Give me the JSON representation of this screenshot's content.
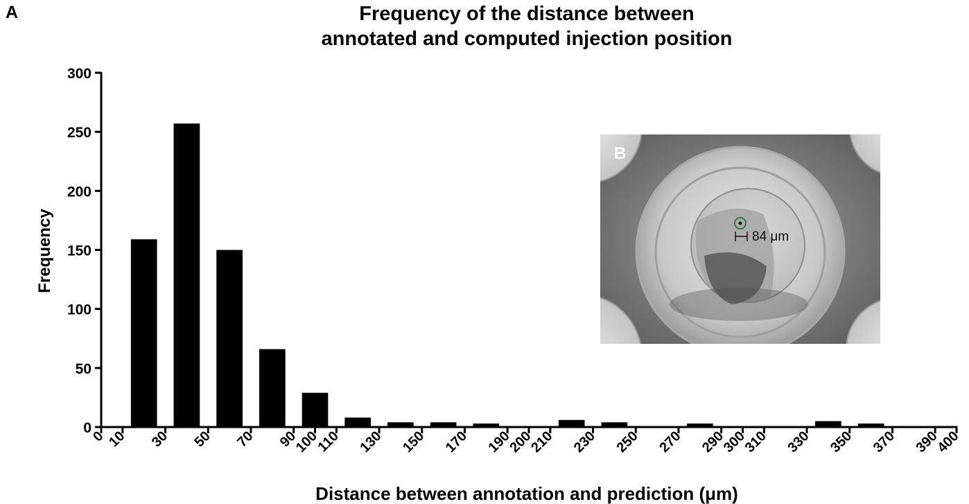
{
  "panel_label": "A",
  "chart_data": {
    "type": "bar",
    "title": "Frequency of the distance between\nannotated and computed injection position",
    "xlabel": "Distance between annotation and prediction (μm)",
    "ylabel": "Frequency",
    "ylim": [
      0,
      300
    ],
    "xlim": [
      0,
      400
    ],
    "yticks": [
      0,
      50,
      100,
      150,
      200,
      250,
      300
    ],
    "xticks": [
      0,
      10,
      30,
      50,
      70,
      90,
      100,
      110,
      130,
      150,
      170,
      190,
      200,
      210,
      230,
      250,
      270,
      290,
      300,
      310,
      330,
      350,
      370,
      390,
      400
    ],
    "bins": [
      {
        "x0": 10,
        "x1": 30,
        "value": 159
      },
      {
        "x0": 30,
        "x1": 50,
        "value": 257
      },
      {
        "x0": 50,
        "x1": 70,
        "value": 150
      },
      {
        "x0": 70,
        "x1": 90,
        "value": 66
      },
      {
        "x0": 90,
        "x1": 110,
        "value": 29
      },
      {
        "x0": 110,
        "x1": 130,
        "value": 8
      },
      {
        "x0": 130,
        "x1": 150,
        "value": 4
      },
      {
        "x0": 150,
        "x1": 170,
        "value": 4
      },
      {
        "x0": 170,
        "x1": 190,
        "value": 3
      },
      {
        "x0": 190,
        "x1": 210,
        "value": 0
      },
      {
        "x0": 210,
        "x1": 230,
        "value": 6
      },
      {
        "x0": 230,
        "x1": 250,
        "value": 4
      },
      {
        "x0": 250,
        "x1": 270,
        "value": 0
      },
      {
        "x0": 270,
        "x1": 290,
        "value": 3
      },
      {
        "x0": 290,
        "x1": 310,
        "value": 0
      },
      {
        "x0": 310,
        "x1": 330,
        "value": 0
      },
      {
        "x0": 330,
        "x1": 350,
        "value": 5
      },
      {
        "x0": 350,
        "x1": 370,
        "value": 3
      },
      {
        "x0": 370,
        "x1": 390,
        "value": 0
      }
    ],
    "bar_color": "#000000"
  },
  "inset": {
    "label": "B",
    "measurement": "84 μm",
    "marker_color": "#2e7d32"
  }
}
